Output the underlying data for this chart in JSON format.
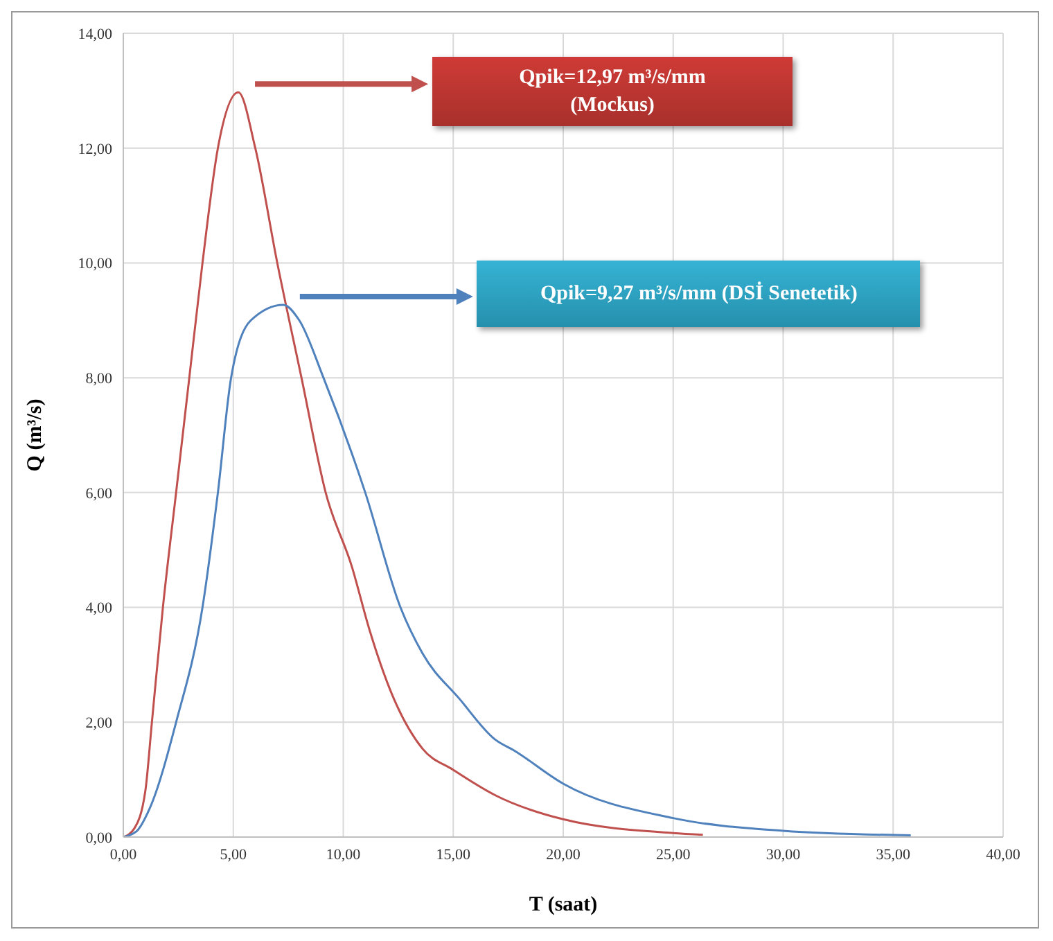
{
  "chart_data": {
    "type": "line",
    "xlabel": "T (saat)",
    "ylabel": "Q (m³/s)",
    "xlim": [
      0,
      40
    ],
    "ylim": [
      0,
      14
    ],
    "xticks": [
      {
        "value": 0,
        "label": "0,00"
      },
      {
        "value": 5,
        "label": "5,00"
      },
      {
        "value": 10,
        "label": "10,00"
      },
      {
        "value": 15,
        "label": "15,00"
      },
      {
        "value": 20,
        "label": "20,00"
      },
      {
        "value": 25,
        "label": "25,00"
      },
      {
        "value": 30,
        "label": "30,00"
      },
      {
        "value": 35,
        "label": "35,00"
      },
      {
        "value": 40,
        "label": "40,00"
      }
    ],
    "yticks": [
      {
        "value": 0,
        "label": "0,00"
      },
      {
        "value": 2,
        "label": "2,00"
      },
      {
        "value": 4,
        "label": "4,00"
      },
      {
        "value": 6,
        "label": "6,00"
      },
      {
        "value": 8,
        "label": "8,00"
      },
      {
        "value": 10,
        "label": "10,00"
      },
      {
        "value": 12,
        "label": "12,00"
      },
      {
        "value": 14,
        "label": "14,00"
      }
    ],
    "grid": true,
    "marker": "none",
    "line_style": "solid",
    "series": [
      {
        "color": "#c0504d",
        "x": [
          0,
          0.5,
          1,
          1.3,
          1.8,
          2.4,
          3,
          3.6,
          4.3,
          5.23,
          6,
          7,
          8.1,
          9.2,
          10.4,
          11.2,
          12.2,
          13.6,
          15,
          16.9,
          20,
          25,
          26.35
        ],
        "values": [
          0,
          0.15,
          0.8,
          2,
          4,
          6,
          8,
          10,
          12,
          12.97,
          12,
          10,
          8,
          6,
          4.7,
          3.6,
          2.5,
          1.54,
          1.17,
          0.73,
          0.31,
          0.07,
          0.04
        ]
      },
      {
        "color": "#4f81bd",
        "x": [
          0,
          0.6,
          1.2,
          2.4,
          3.6,
          4.3,
          4.9,
          5.8,
          7.27,
          8,
          9.1,
          11,
          12.6,
          13.6,
          15.3,
          16.9,
          17.8,
          20,
          25,
          30,
          35.8
        ],
        "values": [
          0,
          0.1,
          0.5,
          2,
          4,
          6,
          8,
          9,
          9.27,
          9,
          8,
          6,
          4,
          3.2,
          2.4,
          1.7,
          1.5,
          0.93,
          0.33,
          0.11,
          0.03
        ]
      }
    ],
    "annotations": [
      "Qpik=12,97 m³/s/mm (Mockus)",
      "Qpik=9,27 m³/s/mm (DSİ Senetetik)"
    ]
  }
}
